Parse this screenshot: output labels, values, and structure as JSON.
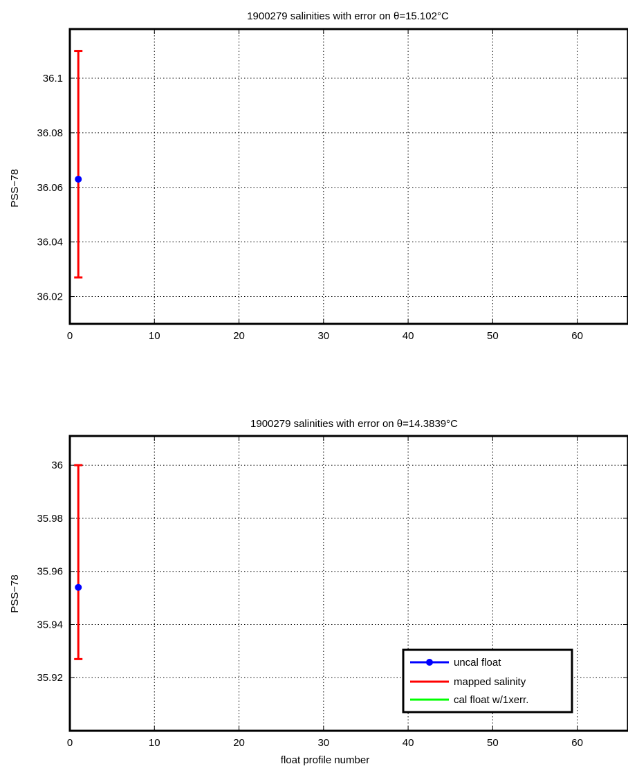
{
  "chart_data": [
    {
      "type": "scatter",
      "title": "1900279 salinities with error on θ=15.102°C",
      "xlabel": "",
      "ylabel": "PSS−78",
      "xlim": [
        0,
        66
      ],
      "ylim": [
        36.01,
        36.118
      ],
      "xticks": [
        0,
        10,
        20,
        30,
        40,
        50,
        60
      ],
      "yticks": [
        36.02,
        36.04,
        36.06,
        36.08,
        36.1
      ],
      "ytick_labels": [
        "36.02",
        "36.04",
        "36.06",
        "36.08",
        "36.1"
      ],
      "grid": true,
      "series": [
        {
          "name": "uncal float",
          "color": "#0000ff",
          "points": [
            {
              "x": 1,
              "y": 36.063
            }
          ]
        },
        {
          "name": "mapped salinity",
          "color": "#ff0000",
          "errorbars": [
            {
              "x": 1,
              "low": 36.027,
              "high": 36.11
            }
          ]
        }
      ]
    },
    {
      "type": "scatter",
      "title": "1900279 salinities with error on θ=14.3839°C",
      "xlabel": "float profile number",
      "ylabel": "PSS−78",
      "xlim": [
        0,
        66
      ],
      "ylim": [
        35.9,
        36.011
      ],
      "xticks": [
        0,
        10,
        20,
        30,
        40,
        50,
        60
      ],
      "yticks": [
        35.92,
        35.94,
        35.96,
        35.98,
        36.0
      ],
      "ytick_labels": [
        "35.92",
        "35.94",
        "35.96",
        "35.98",
        "36"
      ],
      "grid": true,
      "legend": {
        "placement": "bottom-right",
        "entries": [
          {
            "label": "uncal float",
            "color": "#0000ff",
            "marker": "dot"
          },
          {
            "label": "mapped salinity",
            "color": "#ff0000",
            "marker": "line"
          },
          {
            "label": "cal float w/1xerr.",
            "color": "#00ff00",
            "marker": "line"
          }
        ]
      },
      "series": [
        {
          "name": "uncal float",
          "color": "#0000ff",
          "points": [
            {
              "x": 1,
              "y": 35.954
            }
          ]
        },
        {
          "name": "mapped salinity",
          "color": "#ff0000",
          "errorbars": [
            {
              "x": 1,
              "low": 35.927,
              "high": 36.0
            }
          ]
        }
      ]
    }
  ]
}
